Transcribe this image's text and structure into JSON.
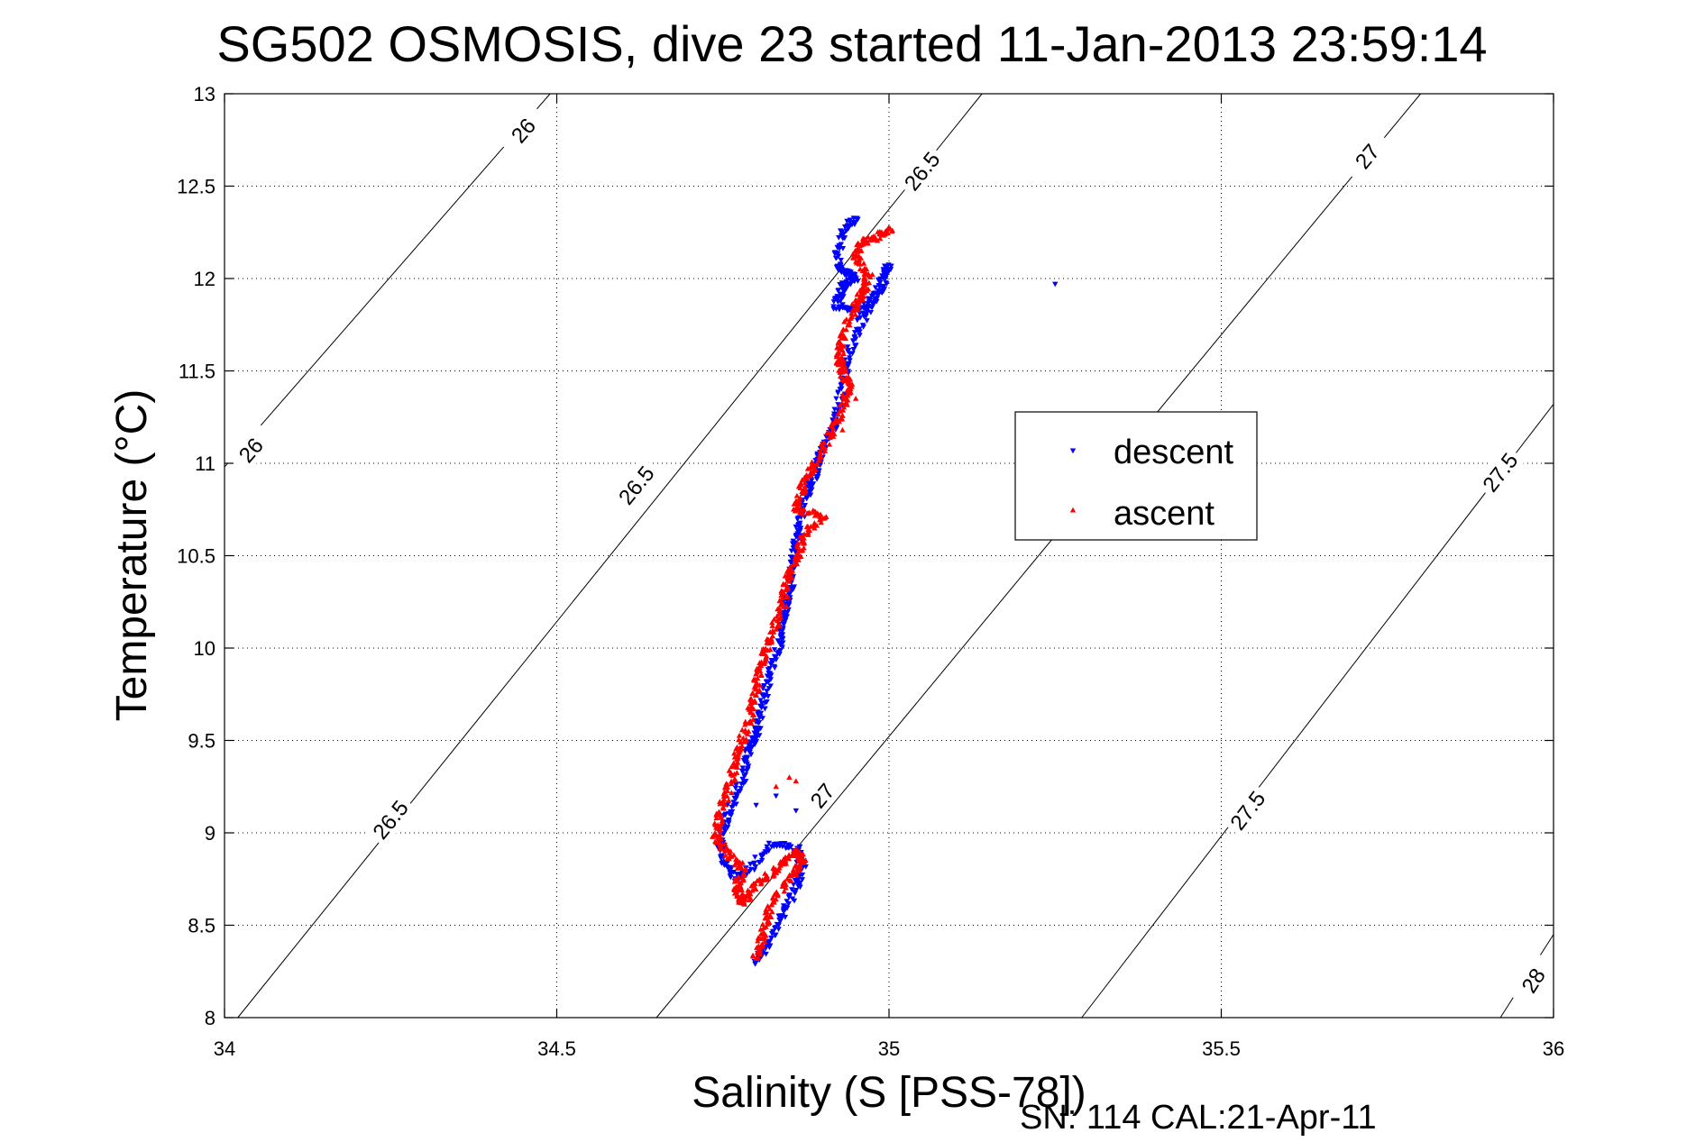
{
  "chart_data": {
    "type": "scatter",
    "title": "SG502 OSMOSIS, dive 23 started 11-Jan-2013 23:59:14",
    "xlabel": "Salinity (S [PSS-78])",
    "ylabel": "Temperature (°C)",
    "xlim": [
      34,
      36
    ],
    "ylim": [
      8,
      13
    ],
    "xticks": [
      34,
      34.5,
      35,
      35.5,
      36
    ],
    "yticks": [
      8,
      8.5,
      9,
      9.5,
      10,
      10.5,
      11,
      11.5,
      12,
      12.5,
      13
    ],
    "xtick_labels": [
      "34",
      "34.5",
      "35",
      "35.5",
      "36"
    ],
    "ytick_labels": [
      "8",
      "8.5",
      "9",
      "9.5",
      "10",
      "10.5",
      "11",
      "11.5",
      "12",
      "12.5",
      "13"
    ],
    "grid": true,
    "legend_position": "center-right",
    "density_contours": [
      {
        "level": "26",
        "points": [
          [
            34.0,
            10.98
          ],
          [
            34.49,
            13.0
          ]
        ],
        "labels": [
          {
            "text": "26",
            "s": 34.04,
            "t": 11.07
          },
          {
            "text": "26",
            "s": 34.45,
            "t": 12.8
          }
        ]
      },
      {
        "level": "26.5",
        "points": [
          [
            34.02,
            8.0
          ],
          [
            35.14,
            13.0
          ]
        ],
        "labels": [
          {
            "text": "26.5",
            "s": 34.25,
            "t": 9.07
          },
          {
            "text": "26.5",
            "s": 34.62,
            "t": 10.88
          },
          {
            "text": "26.5",
            "s": 35.05,
            "t": 12.58
          }
        ]
      },
      {
        "level": "27",
        "points": [
          [
            34.65,
            8.0
          ],
          [
            35.8,
            13.0
          ]
        ],
        "labels": [
          {
            "text": "27",
            "s": 34.9,
            "t": 9.2
          },
          {
            "text": "27",
            "s": 35.72,
            "t": 12.66
          }
        ]
      },
      {
        "level": "27.5",
        "points": [
          [
            35.29,
            8.0
          ],
          [
            36.0,
            11.32
          ]
        ],
        "labels": [
          {
            "text": "27.5",
            "s": 35.54,
            "t": 9.12
          },
          {
            "text": "27.5",
            "s": 35.92,
            "t": 10.95
          }
        ]
      },
      {
        "level": "28",
        "points": [
          [
            35.92,
            8.0
          ],
          [
            36.0,
            8.45
          ]
        ],
        "labels": [
          {
            "text": "28",
            "s": 35.97,
            "t": 8.2
          }
        ]
      }
    ],
    "series": [
      {
        "name": "descent",
        "color": "#0000ff",
        "marker": "triangle-down",
        "path": [
          [
            34.95,
            12.33
          ],
          [
            34.93,
            12.24
          ],
          [
            34.92,
            12.06
          ],
          [
            34.935,
            12.04
          ],
          [
            34.95,
            12.0
          ],
          [
            34.93,
            11.96
          ],
          [
            34.92,
            11.85
          ],
          [
            34.955,
            11.82
          ],
          [
            34.99,
            11.95
          ],
          [
            35.0,
            12.08
          ],
          [
            34.98,
            11.9
          ],
          [
            34.96,
            11.78
          ],
          [
            34.94,
            11.6
          ],
          [
            34.93,
            11.42
          ],
          [
            34.92,
            11.22
          ],
          [
            34.9,
            11.08
          ],
          [
            34.89,
            10.95
          ],
          [
            34.875,
            10.82
          ],
          [
            34.865,
            10.66
          ],
          [
            34.86,
            10.55
          ],
          [
            34.855,
            10.42
          ],
          [
            34.85,
            10.3
          ],
          [
            34.84,
            10.15
          ],
          [
            34.835,
            10.02
          ],
          [
            34.82,
            9.85
          ],
          [
            34.81,
            9.7
          ],
          [
            34.8,
            9.55
          ],
          [
            34.79,
            9.45
          ],
          [
            34.78,
            9.3
          ],
          [
            34.76,
            9.12
          ],
          [
            34.745,
            8.98
          ],
          [
            34.75,
            8.85
          ],
          [
            34.77,
            8.75
          ],
          [
            34.79,
            8.8
          ],
          [
            34.82,
            8.93
          ],
          [
            34.86,
            8.93
          ],
          [
            34.87,
            8.82
          ],
          [
            34.86,
            8.7
          ],
          [
            34.84,
            8.55
          ],
          [
            34.82,
            8.4
          ],
          [
            34.8,
            8.3
          ]
        ],
        "extra_points": [
          [
            35.25,
            11.97
          ],
          [
            34.86,
            9.12
          ],
          [
            34.83,
            9.2
          ],
          [
            34.8,
            9.15
          ]
        ]
      },
      {
        "name": "ascent",
        "color": "#ff0000",
        "marker": "triangle-up",
        "path": [
          [
            35.0,
            12.27
          ],
          [
            34.98,
            12.22
          ],
          [
            34.96,
            12.2
          ],
          [
            34.95,
            12.12
          ],
          [
            34.97,
            12.02
          ],
          [
            34.96,
            11.92
          ],
          [
            34.95,
            11.85
          ],
          [
            34.93,
            11.7
          ],
          [
            34.925,
            11.58
          ],
          [
            34.93,
            11.5
          ],
          [
            34.94,
            11.42
          ],
          [
            34.93,
            11.3
          ],
          [
            34.91,
            11.15
          ],
          [
            34.89,
            11.0
          ],
          [
            34.87,
            10.88
          ],
          [
            34.86,
            10.75
          ],
          [
            34.9,
            10.72
          ],
          [
            34.87,
            10.6
          ],
          [
            34.86,
            10.48
          ],
          [
            34.845,
            10.35
          ],
          [
            34.84,
            10.22
          ],
          [
            34.82,
            10.05
          ],
          [
            34.81,
            9.92
          ],
          [
            34.8,
            9.8
          ],
          [
            34.795,
            9.68
          ],
          [
            34.78,
            9.52
          ],
          [
            34.77,
            9.4
          ],
          [
            34.76,
            9.25
          ],
          [
            34.745,
            9.1
          ],
          [
            34.74,
            8.98
          ],
          [
            34.76,
            8.88
          ],
          [
            34.78,
            8.8
          ],
          [
            34.77,
            8.7
          ],
          [
            34.78,
            8.62
          ],
          [
            34.8,
            8.72
          ],
          [
            34.83,
            8.8
          ],
          [
            34.86,
            8.9
          ],
          [
            34.87,
            8.85
          ],
          [
            34.85,
            8.75
          ],
          [
            34.82,
            8.6
          ],
          [
            34.81,
            8.45
          ],
          [
            34.8,
            8.32
          ]
        ],
        "extra_points": [
          [
            34.83,
            9.25
          ],
          [
            34.85,
            9.3
          ],
          [
            34.86,
            9.28
          ],
          [
            34.93,
            11.18
          ],
          [
            34.95,
            11.35
          ]
        ]
      }
    ],
    "footer_note": "SN: 114  CAL:21-Apr-11"
  }
}
